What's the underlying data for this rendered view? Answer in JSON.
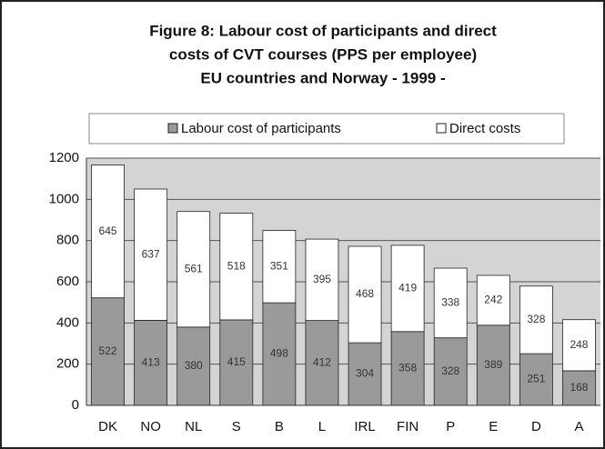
{
  "chart_data": {
    "type": "stacked-bar",
    "title": [
      "Figure 8: Labour cost of participants and direct",
      "costs of CVT courses (PPS per employee)",
      "EU countries and Norway - 1999 -"
    ],
    "categories": [
      "DK",
      "NO",
      "NL",
      "S",
      "B",
      "L",
      "IRL",
      "FIN",
      "P",
      "E",
      "D",
      "A"
    ],
    "series": [
      {
        "name": "Labour cost of participants",
        "color": "#9a9a9a",
        "values": [
          522,
          413,
          380,
          415,
          498,
          412,
          304,
          358,
          328,
          389,
          251,
          168
        ]
      },
      {
        "name": "Direct costs",
        "color": "#ffffff",
        "values": [
          645,
          637,
          561,
          518,
          351,
          395,
          468,
          419,
          338,
          242,
          328,
          248
        ]
      }
    ],
    "ylim": [
      0,
      1200
    ],
    "yticks": [
      0,
      200,
      400,
      600,
      800,
      1000,
      1200
    ],
    "grid": true,
    "legend": "top"
  }
}
